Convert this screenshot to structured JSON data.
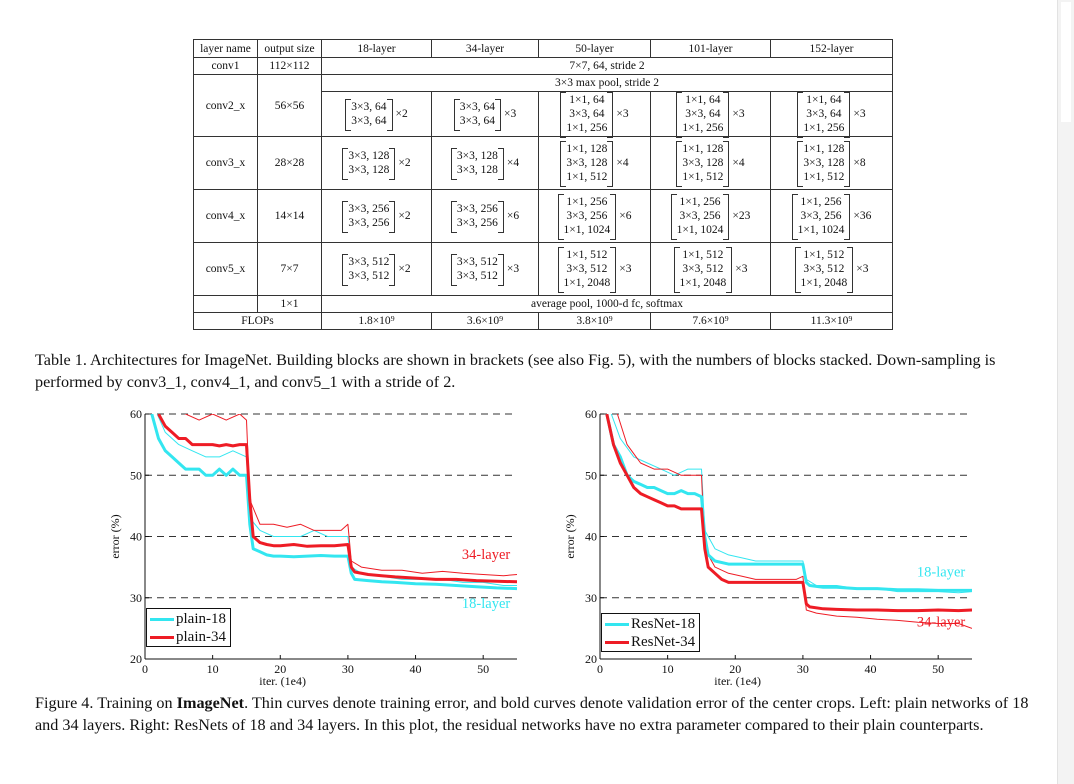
{
  "table": {
    "headers": [
      "layer name",
      "output size",
      "18-layer",
      "34-layer",
      "50-layer",
      "101-layer",
      "152-layer"
    ],
    "conv1": {
      "name": "conv1",
      "size": "112×112",
      "spec": "7×7, 64, stride 2"
    },
    "maxpool": "3×3 max pool, stride 2",
    "rows": [
      {
        "name": "conv2_x",
        "size": "56×56",
        "b18": [
          "3×3, 64",
          "3×3, 64"
        ],
        "m18": "×2",
        "b34": [
          "3×3, 64",
          "3×3, 64"
        ],
        "m34": "×3",
        "b50": [
          "1×1, 64",
          "3×3, 64",
          "1×1, 256"
        ],
        "m50": "×3",
        "b101": [
          "1×1, 64",
          "3×3, 64",
          "1×1, 256"
        ],
        "m101": "×3",
        "b152": [
          "1×1, 64",
          "3×3, 64",
          "1×1, 256"
        ],
        "m152": "×3"
      },
      {
        "name": "conv3_x",
        "size": "28×28",
        "b18": [
          "3×3, 128",
          "3×3, 128"
        ],
        "m18": "×2",
        "b34": [
          "3×3, 128",
          "3×3, 128"
        ],
        "m34": "×4",
        "b50": [
          "1×1, 128",
          "3×3, 128",
          "1×1, 512"
        ],
        "m50": "×4",
        "b101": [
          "1×1, 128",
          "3×3, 128",
          "1×1, 512"
        ],
        "m101": "×4",
        "b152": [
          "1×1, 128",
          "3×3, 128",
          "1×1, 512"
        ],
        "m152": "×8"
      },
      {
        "name": "conv4_x",
        "size": "14×14",
        "b18": [
          "3×3, 256",
          "3×3, 256"
        ],
        "m18": "×2",
        "b34": [
          "3×3, 256",
          "3×3, 256"
        ],
        "m34": "×6",
        "b50": [
          "1×1, 256",
          "3×3, 256",
          "1×1, 1024"
        ],
        "m50": "×6",
        "b101": [
          "1×1, 256",
          "3×3, 256",
          "1×1, 1024"
        ],
        "m101": "×23",
        "b152": [
          "1×1, 256",
          "3×3, 256",
          "1×1, 1024"
        ],
        "m152": "×36"
      },
      {
        "name": "conv5_x",
        "size": "7×7",
        "b18": [
          "3×3, 512",
          "3×3, 512"
        ],
        "m18": "×2",
        "b34": [
          "3×3, 512",
          "3×3, 512"
        ],
        "m34": "×3",
        "b50": [
          "1×1, 512",
          "3×3, 512",
          "1×1, 2048"
        ],
        "m50": "×3",
        "b101": [
          "1×1, 512",
          "3×3, 512",
          "1×1, 2048"
        ],
        "m101": "×3",
        "b152": [
          "1×1, 512",
          "3×3, 512",
          "1×1, 2048"
        ],
        "m152": "×3"
      }
    ],
    "pool_row": {
      "size": "1×1",
      "spec": "average pool, 1000-d fc, softmax"
    },
    "flops": {
      "label": "FLOPs",
      "values": [
        "1.8×10⁹",
        "3.6×10⁹",
        "3.8×10⁹",
        "7.6×10⁹",
        "11.3×10⁹"
      ]
    }
  },
  "table_caption": "Table 1. Architectures for ImageNet. Building blocks are shown in brackets (see also Fig. 5), with the numbers of blocks stacked. Down-sampling is performed by conv3_1, conv4_1, and conv5_1 with a stride of 2.",
  "figure_caption": {
    "prefix": "Figure 4. Training on ",
    "bold": "ImageNet",
    "rest": ". Thin curves denote training error, and bold curves denote validation error of the center crops. Left: plain networks of 18 and 34 layers. Right: ResNets of 18 and 34 layers. In this plot, the residual networks have no extra parameter compared to their plain counterparts."
  },
  "colors": {
    "cyan": "#33e6f0",
    "red": "#ee1c25"
  },
  "chart_data": [
    {
      "type": "line",
      "ylabel": "error (%)",
      "xlabel": "iter. (1e4)",
      "xlim": [
        0,
        55
      ],
      "ylim": [
        20,
        60
      ],
      "xticks": [
        "0",
        "10",
        "20",
        "30",
        "40",
        "50"
      ],
      "yticks": [
        "20",
        "30",
        "40",
        "50",
        "60"
      ],
      "grid": "dashed horizontal at 30, 40, 50, 60",
      "annotations": [
        {
          "text": "34-layer",
          "color": "red"
        },
        {
          "text": "18-layer",
          "color": "cyan"
        }
      ],
      "legend": {
        "position": "bottom-left",
        "entries": [
          "plain-18",
          "plain-34"
        ]
      },
      "series": [
        {
          "name": "plain-18 (val)",
          "color": "cyan",
          "width": "bold",
          "x": [
            1,
            2,
            3,
            4,
            5,
            6,
            7,
            8,
            9,
            10,
            11,
            12,
            13,
            14,
            15,
            15.5,
            16,
            17,
            18,
            19,
            20,
            22,
            24,
            26,
            28,
            30,
            30.5,
            31,
            33,
            35,
            37,
            40,
            43,
            46,
            49,
            52,
            55
          ],
          "y": [
            60,
            56,
            54,
            53,
            52,
            51,
            51,
            51,
            50,
            50,
            51,
            50,
            51,
            50,
            50,
            42,
            38,
            37.5,
            37,
            36.8,
            36.8,
            36.7,
            36.8,
            36.9,
            36.8,
            36.8,
            34,
            33,
            32.8,
            32.6,
            32.5,
            32.3,
            32.2,
            32,
            31.8,
            31.6,
            31.5
          ]
        },
        {
          "name": "plain-34 (val)",
          "color": "red",
          "width": "bold",
          "x": [
            2,
            3,
            4,
            5,
            6,
            7,
            8,
            9,
            10,
            11,
            12,
            13,
            14,
            15,
            15.5,
            16,
            17,
            18,
            19,
            20,
            22,
            24,
            26,
            28,
            30,
            30.5,
            31,
            33,
            35,
            37,
            40,
            43,
            46,
            49,
            52,
            55
          ],
          "y": [
            60,
            58,
            57,
            56,
            56,
            55,
            55,
            55,
            55,
            54.8,
            55,
            54.8,
            55,
            55,
            46,
            40,
            39,
            38.7,
            38.5,
            38.5,
            38.7,
            38.4,
            38.5,
            38.5,
            38.7,
            35,
            34.2,
            33.8,
            33.6,
            33.4,
            33.2,
            33,
            33,
            32.8,
            32.7,
            32.6
          ]
        },
        {
          "name": "plain-18 (train)",
          "color": "cyan",
          "width": "thin",
          "x": [
            1,
            3,
            5,
            7,
            9,
            11,
            13,
            15,
            15.5,
            17,
            19,
            21,
            23,
            25,
            27,
            29,
            30,
            30.5,
            32,
            35,
            38,
            41,
            44,
            47,
            50,
            53,
            55
          ],
          "y": [
            62,
            57,
            55,
            54,
            53,
            53,
            54,
            53,
            43,
            41,
            40,
            40,
            40,
            41,
            40,
            40,
            40,
            35,
            34,
            33.5,
            33,
            33,
            33,
            32.5,
            32.5,
            32,
            32
          ]
        },
        {
          "name": "plain-34 (train)",
          "color": "red",
          "width": "thin",
          "x": [
            2,
            4,
            6,
            8,
            10,
            12,
            14,
            15,
            15.5,
            17,
            19,
            21,
            23,
            25,
            27,
            29,
            30,
            30.5,
            32,
            35,
            38,
            41,
            44,
            47,
            50,
            53,
            55
          ],
          "y": [
            63,
            61,
            60,
            59,
            60,
            59,
            60,
            59,
            46,
            42,
            42,
            41.5,
            42,
            41,
            41,
            41,
            42,
            36,
            35,
            34.5,
            34.5,
            34,
            34.3,
            34,
            33.8,
            33.6,
            33.8
          ]
        }
      ]
    },
    {
      "type": "line",
      "ylabel": "error (%)",
      "xlabel": "iter. (1e4)",
      "xlim": [
        0,
        55
      ],
      "ylim": [
        20,
        60
      ],
      "xticks": [
        "0",
        "10",
        "20",
        "30",
        "40",
        "50"
      ],
      "yticks": [
        "20",
        "30",
        "40",
        "50",
        "60"
      ],
      "grid": "dashed horizontal at 30, 40, 50, 60",
      "annotations": [
        {
          "text": "18-layer",
          "color": "cyan"
        },
        {
          "text": "34-layer",
          "color": "red"
        }
      ],
      "legend": {
        "position": "bottom-left",
        "entries": [
          "ResNet-18",
          "ResNet-34"
        ]
      },
      "series": [
        {
          "name": "ResNet-18 (val)",
          "color": "cyan",
          "width": "bold",
          "x": [
            1,
            2,
            3,
            4,
            5,
            6,
            7,
            8,
            9,
            10,
            11,
            12,
            13,
            14,
            15,
            15.5,
            16,
            17,
            19,
            21,
            23,
            25,
            27,
            29,
            30,
            30.5,
            31,
            33,
            35,
            38,
            41,
            44,
            47,
            50,
            53,
            55
          ],
          "y": [
            60,
            55,
            53,
            50,
            49,
            48.5,
            48,
            48,
            47.5,
            47,
            47,
            47.5,
            47,
            47,
            46.5,
            40,
            37,
            36,
            35.5,
            35.5,
            35.5,
            35.5,
            35.5,
            35.5,
            35.5,
            32.5,
            32,
            31.7,
            31.7,
            31.5,
            31.5,
            31.3,
            31.3,
            31.2,
            31.2,
            31.2
          ]
        },
        {
          "name": "ResNet-34 (val)",
          "color": "red",
          "width": "bold",
          "x": [
            1,
            2,
            3,
            4,
            5,
            6,
            7,
            8,
            9,
            10,
            11,
            12,
            13,
            14,
            15,
            15.5,
            16,
            17,
            18,
            19,
            21,
            23,
            25,
            27,
            29,
            30,
            30.5,
            31,
            33,
            35,
            38,
            41,
            44,
            47,
            50,
            53,
            55
          ],
          "y": [
            60,
            55,
            52,
            50,
            48,
            47,
            46.5,
            46,
            45.5,
            45,
            45,
            44.5,
            44.5,
            44.5,
            44.5,
            38,
            35,
            34,
            33,
            32.5,
            32.5,
            32.5,
            32.5,
            32.5,
            32.5,
            32.5,
            29,
            28.5,
            28.2,
            28.1,
            28,
            28,
            27.9,
            27.9,
            28,
            27.9,
            28
          ]
        },
        {
          "name": "ResNet-18 (train)",
          "color": "cyan",
          "width": "thin",
          "x": [
            1,
            3,
            5,
            7,
            9,
            11,
            13,
            15,
            15.5,
            17,
            19,
            21,
            23,
            25,
            27,
            29,
            30,
            30.5,
            32,
            35,
            38,
            41,
            44,
            47,
            50,
            53,
            55
          ],
          "y": [
            62,
            56,
            53,
            52,
            51,
            50,
            51,
            51,
            41,
            38,
            37,
            36.5,
            36,
            36,
            36,
            36,
            36,
            33,
            32,
            32,
            31.5,
            31.5,
            31,
            31,
            31,
            30.8,
            31
          ]
        },
        {
          "name": "ResNet-34 (train)",
          "color": "red",
          "width": "thin",
          "x": [
            2,
            4,
            6,
            8,
            10,
            12,
            14,
            15,
            15.5,
            17,
            19,
            21,
            23,
            25,
            27,
            29,
            30,
            30.5,
            32,
            35,
            38,
            41,
            44,
            47,
            50,
            53,
            55
          ],
          "y": [
            62,
            55,
            52,
            51,
            51,
            50,
            50,
            50,
            38,
            35,
            34,
            33.5,
            33,
            33,
            33,
            33,
            33.5,
            28,
            27.5,
            27,
            26.8,
            26.5,
            26.3,
            26,
            25.8,
            25.8,
            25
          ]
        }
      ]
    }
  ]
}
